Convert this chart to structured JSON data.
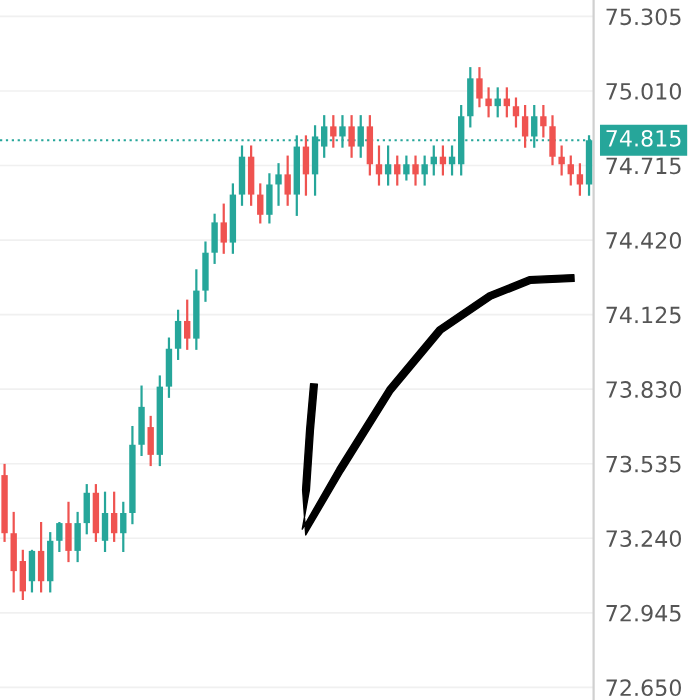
{
  "chart_data": {
    "type": "candlestick",
    "categories": [
      null,
      null,
      null,
      null,
      null,
      null,
      null,
      null,
      null,
      null,
      null,
      null,
      null,
      null,
      null,
      null,
      null,
      null,
      null,
      null,
      null,
      null,
      null,
      null,
      null,
      null,
      null,
      null,
      null,
      null,
      null,
      null,
      null,
      null,
      null,
      null,
      null,
      null,
      null,
      null,
      null,
      null,
      null,
      null,
      null,
      null,
      null,
      null,
      null,
      null,
      null,
      null,
      null,
      null,
      null,
      null,
      null,
      null,
      null,
      null,
      null,
      null,
      null,
      null,
      null
    ],
    "ohlc": [
      [
        73.49,
        73.53,
        73.23,
        73.26
      ],
      [
        73.26,
        73.34,
        73.03,
        73.11
      ],
      [
        73.15,
        73.19,
        73.0,
        73.03
      ],
      [
        73.07,
        73.19,
        73.03,
        73.19
      ],
      [
        73.19,
        73.3,
        73.03,
        73.07
      ],
      [
        73.07,
        73.26,
        73.03,
        73.23
      ],
      [
        73.23,
        73.3,
        73.19,
        73.3
      ],
      [
        73.3,
        73.38,
        73.15,
        73.19
      ],
      [
        73.19,
        73.34,
        73.15,
        73.3
      ],
      [
        73.3,
        73.45,
        73.26,
        73.42
      ],
      [
        73.42,
        73.45,
        73.23,
        73.26
      ],
      [
        73.23,
        73.42,
        73.19,
        73.34
      ],
      [
        73.34,
        73.42,
        73.23,
        73.26
      ],
      [
        73.26,
        73.38,
        73.19,
        73.34
      ],
      [
        73.34,
        73.68,
        73.3,
        73.61
      ],
      [
        73.61,
        73.84,
        73.57,
        73.76
      ],
      [
        73.68,
        73.72,
        73.53,
        73.57
      ],
      [
        73.57,
        73.88,
        73.53,
        73.84
      ],
      [
        73.84,
        74.03,
        73.8,
        73.99
      ],
      [
        73.99,
        74.14,
        73.95,
        74.1
      ],
      [
        74.1,
        74.18,
        73.99,
        74.03
      ],
      [
        74.03,
        74.3,
        73.99,
        74.22
      ],
      [
        74.22,
        74.41,
        74.18,
        74.37
      ],
      [
        74.37,
        74.52,
        74.33,
        74.49
      ],
      [
        74.49,
        74.56,
        74.37,
        74.41
      ],
      [
        74.41,
        74.64,
        74.37,
        74.6
      ],
      [
        74.6,
        74.79,
        74.56,
        74.75
      ],
      [
        74.75,
        74.79,
        74.56,
        74.6
      ],
      [
        74.6,
        74.64,
        74.49,
        74.52
      ],
      [
        74.52,
        74.68,
        74.49,
        74.64
      ],
      [
        74.64,
        74.72,
        74.56,
        74.68
      ],
      [
        74.68,
        74.75,
        74.56,
        74.6
      ],
      [
        74.6,
        74.83,
        74.52,
        74.79
      ],
      [
        74.79,
        74.83,
        74.6,
        74.68
      ],
      [
        74.68,
        74.87,
        74.6,
        74.83
      ],
      [
        74.79,
        74.91,
        74.75,
        74.87
      ],
      [
        74.87,
        74.91,
        74.79,
        74.83
      ],
      [
        74.83,
        74.91,
        74.79,
        74.87
      ],
      [
        74.87,
        74.91,
        74.75,
        74.79
      ],
      [
        74.79,
        74.91,
        74.75,
        74.87
      ],
      [
        74.87,
        74.91,
        74.68,
        74.72
      ],
      [
        74.72,
        74.79,
        74.64,
        74.68
      ],
      [
        74.68,
        74.79,
        74.64,
        74.72
      ],
      [
        74.72,
        74.75,
        74.64,
        74.68
      ],
      [
        74.68,
        74.75,
        74.66,
        74.72
      ],
      [
        74.72,
        74.75,
        74.64,
        74.68
      ],
      [
        74.68,
        74.75,
        74.64,
        74.72
      ],
      [
        74.72,
        74.79,
        74.68,
        74.75
      ],
      [
        74.75,
        74.79,
        74.68,
        74.72
      ],
      [
        74.72,
        74.79,
        74.68,
        74.75
      ],
      [
        74.72,
        74.95,
        74.68,
        74.91
      ],
      [
        74.91,
        75.1,
        74.87,
        75.06
      ],
      [
        75.06,
        75.1,
        74.95,
        74.98
      ],
      [
        74.98,
        75.02,
        74.91,
        74.95
      ],
      [
        74.95,
        75.02,
        74.91,
        74.98
      ],
      [
        74.98,
        75.02,
        74.91,
        74.95
      ],
      [
        74.95,
        74.98,
        74.87,
        74.91
      ],
      [
        74.91,
        74.95,
        74.79,
        74.83
      ],
      [
        74.83,
        74.95,
        74.79,
        74.91
      ],
      [
        74.91,
        74.95,
        74.83,
        74.87
      ],
      [
        74.87,
        74.91,
        74.72,
        74.75
      ],
      [
        74.75,
        74.79,
        74.68,
        74.72
      ],
      [
        74.72,
        74.75,
        74.64,
        74.68
      ],
      [
        74.68,
        74.72,
        74.6,
        74.64
      ],
      [
        74.64,
        74.83,
        74.6,
        74.815
      ]
    ],
    "colors": [
      "#ef5350",
      "#ef5350",
      "#ef5350",
      "#26a69a",
      "#ef5350",
      "#26a69a",
      "#26a69a",
      "#ef5350",
      "#26a69a",
      "#26a69a",
      "#ef5350",
      "#26a69a",
      "#ef5350",
      "#26a69a",
      "#26a69a",
      "#26a69a",
      "#ef5350",
      "#26a69a",
      "#26a69a",
      "#26a69a",
      "#ef5350",
      "#26a69a",
      "#26a69a",
      "#26a69a",
      "#ef5350",
      "#26a69a",
      "#26a69a",
      "#ef5350",
      "#ef5350",
      "#26a69a",
      "#26a69a",
      "#ef5350",
      "#26a69a",
      "#ef5350",
      "#26a69a",
      "#26a69a",
      "#ef5350",
      "#26a69a",
      "#ef5350",
      "#26a69a",
      "#ef5350",
      "#ef5350",
      "#26a69a",
      "#ef5350",
      "#26a69a",
      "#ef5350",
      "#26a69a",
      "#26a69a",
      "#ef5350",
      "#26a69a",
      "#26a69a",
      "#26a69a",
      "#ef5350",
      "#ef5350",
      "#26a69a",
      "#ef5350",
      "#ef5350",
      "#ef5350",
      "#26a69a",
      "#ef5350",
      "#ef5350",
      "#ef5350",
      "#ef5350",
      "#ef5350",
      "#26a69a"
    ],
    "ylim": [
      72.6,
      75.37
    ],
    "yticks": [
      {
        "value": 72.65,
        "label": "72.650"
      },
      {
        "value": 72.945,
        "label": "72.945"
      },
      {
        "value": 73.24,
        "label": "73.240"
      },
      {
        "value": 73.535,
        "label": "73.535"
      },
      {
        "value": 73.83,
        "label": "73.830"
      },
      {
        "value": 74.125,
        "label": "74.125"
      },
      {
        "value": 74.42,
        "label": "74.420"
      },
      {
        "value": 74.715,
        "label": "74.715"
      },
      {
        "value": 75.01,
        "label": "75.010"
      },
      {
        "value": 75.305,
        "label": "75.305"
      }
    ],
    "ref_lines": [
      {
        "axis": "y",
        "value": 74.815,
        "label": "74.815",
        "color": "#26a69a",
        "line_style": "dotted"
      }
    ],
    "grid": "y",
    "tick_labels": "y"
  }
}
